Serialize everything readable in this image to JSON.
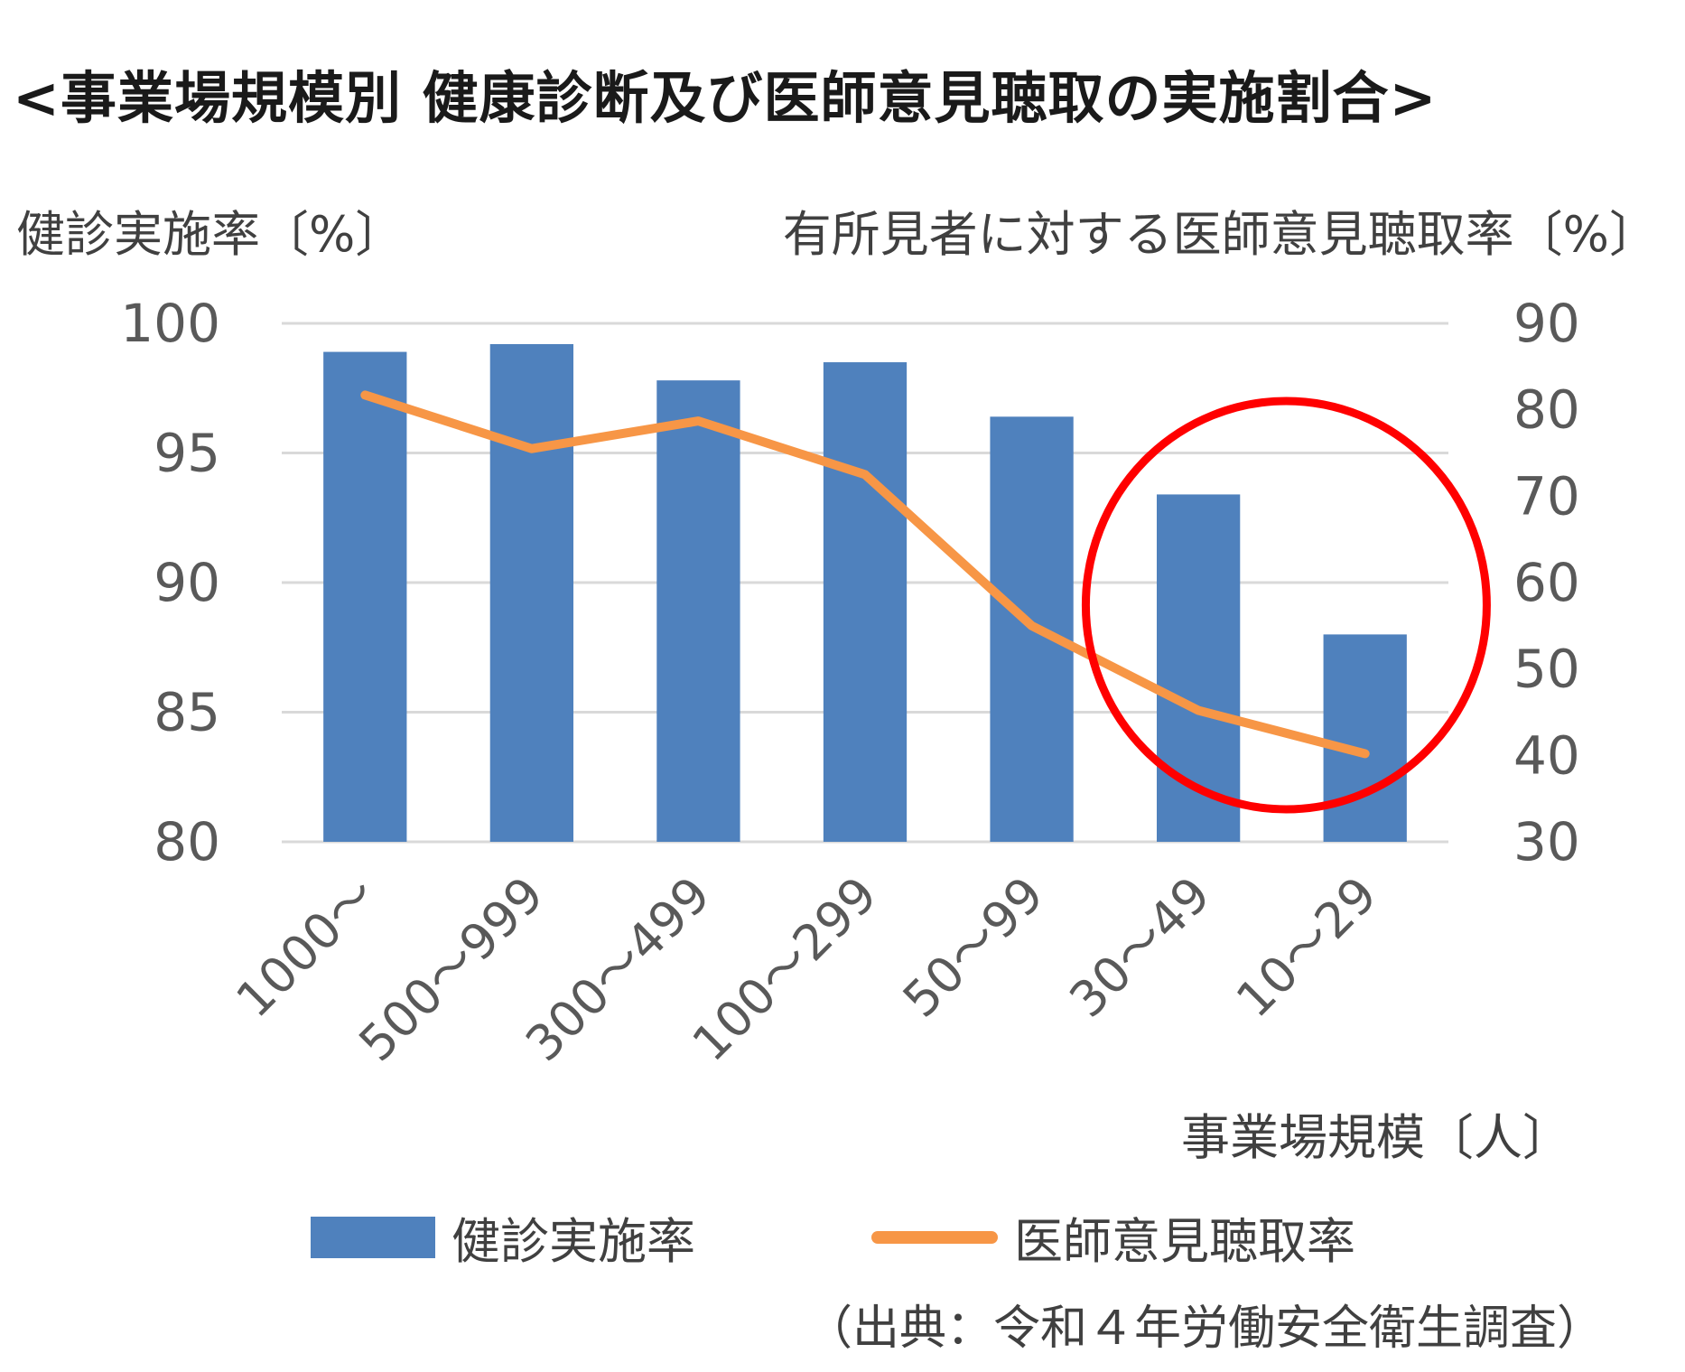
{
  "chart_data": {
    "type": "bar+line",
    "title": "<事業場規模別 健康診断及び医師意見聴取の実施割合>",
    "categories": [
      "1000～",
      "500～999",
      "300～499",
      "100～299",
      "50～99",
      "30～49",
      "10～29"
    ],
    "xlabel": "事業場規模〔人〕",
    "ylabel_left": "健診実施率〔%〕",
    "ylabel_right": "有所見者に対する医師意見聴取率〔%〕",
    "ylim_left": [
      80,
      100
    ],
    "ylim_right": [
      30,
      90
    ],
    "yticks_left": [
      "100",
      "95",
      "90",
      "85",
      "80"
    ],
    "yticks_right": [
      "90",
      "80",
      "70",
      "60",
      "50",
      "40",
      "30"
    ],
    "grid": true,
    "legend_position": "bottom",
    "series": [
      {
        "name": "健診実施率",
        "type": "bar",
        "axis": "left",
        "color": "#4f81bd",
        "values": [
          98.9,
          99.2,
          97.8,
          98.5,
          96.4,
          93.4,
          88.0
        ]
      },
      {
        "name": "医師意見聴取率",
        "type": "line",
        "axis": "right",
        "color": "#f79646",
        "values": [
          81.7,
          75.5,
          78.7,
          72.5,
          55.0,
          45.2,
          40.2
        ]
      }
    ],
    "annotation": {
      "shape": "circle",
      "color": "#ff0000",
      "highlights": [
        "30～49",
        "10～29"
      ]
    }
  },
  "source": "（出典：令和４年労働安全衛生調査）"
}
